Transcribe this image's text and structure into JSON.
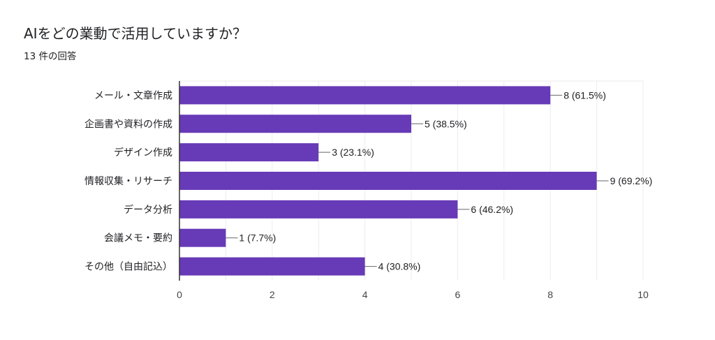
{
  "header": {
    "title": "AIをどの業動で活用していますか？",
    "response_count": "13 件の回答"
  },
  "chart_data": {
    "type": "bar",
    "orientation": "horizontal",
    "title": "AIをどの業動で活用していますか？",
    "categories": [
      "メール・文章作成",
      "企画書や資料の作成",
      "デザイン作成",
      "情報収集・リサーチ",
      "データ分析",
      "会議メモ・要約",
      "その他（自由記込）"
    ],
    "values": [
      8,
      5,
      3,
      9,
      6,
      1,
      4
    ],
    "data_labels": [
      "8 (61.5%)",
      "5 (38.5%)",
      "3 (23.1%)",
      "9 (69.2%)",
      "6 (46.2%)",
      "1 (7.7%)",
      "4 (30.8%)"
    ],
    "xlim": [
      0,
      10
    ],
    "xticks": [
      0,
      2,
      4,
      6,
      8,
      10
    ],
    "grid": true,
    "bar_color": "#673ab7"
  }
}
